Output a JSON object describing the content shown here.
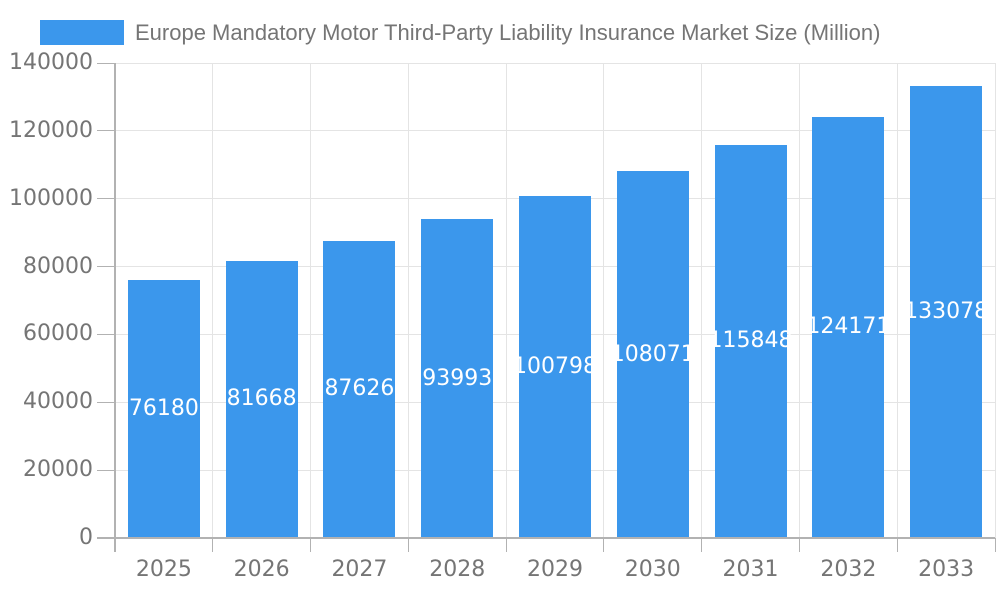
{
  "title": "Europe Mandatory Motor Third-Party Liability Insurance Market Size (Million)",
  "legend": {
    "swatch": "legend-color-swatch",
    "label": "Europe Mandatory Motor Third-Party Liability Insurance Market Size (Million)"
  },
  "colors": {
    "bar": "#3B97EC",
    "grid": "#E4E4E4",
    "axis_line": "#B2B2B2",
    "text": "#757575",
    "bar_label": "#FFFFFF",
    "background": "#FFFFFF"
  },
  "chart_data": {
    "type": "bar",
    "title": "Europe Mandatory Motor Third-Party Liability Insurance Market Size (Million)",
    "series_name": "Europe Mandatory Motor Third-Party Liability Insurance Market Size (Million)",
    "categories": [
      "2025",
      "2026",
      "2027",
      "2028",
      "2029",
      "2030",
      "2031",
      "2032",
      "2033"
    ],
    "values": [
      76180,
      81668,
      87626,
      93993,
      100798,
      108071,
      115848,
      124171,
      133078
    ],
    "xlabel": "",
    "ylabel": "",
    "ylim": [
      0,
      140000
    ],
    "ytick_step": 20000,
    "ytick_labels": [
      "0",
      "20000",
      "40000",
      "60000",
      "80000",
      "100000",
      "120000",
      "140000"
    ],
    "grid": true,
    "vertical_gridlines": true,
    "legend_position": "top-left",
    "bar_labels_visible": true,
    "bar_label_position": "center"
  }
}
